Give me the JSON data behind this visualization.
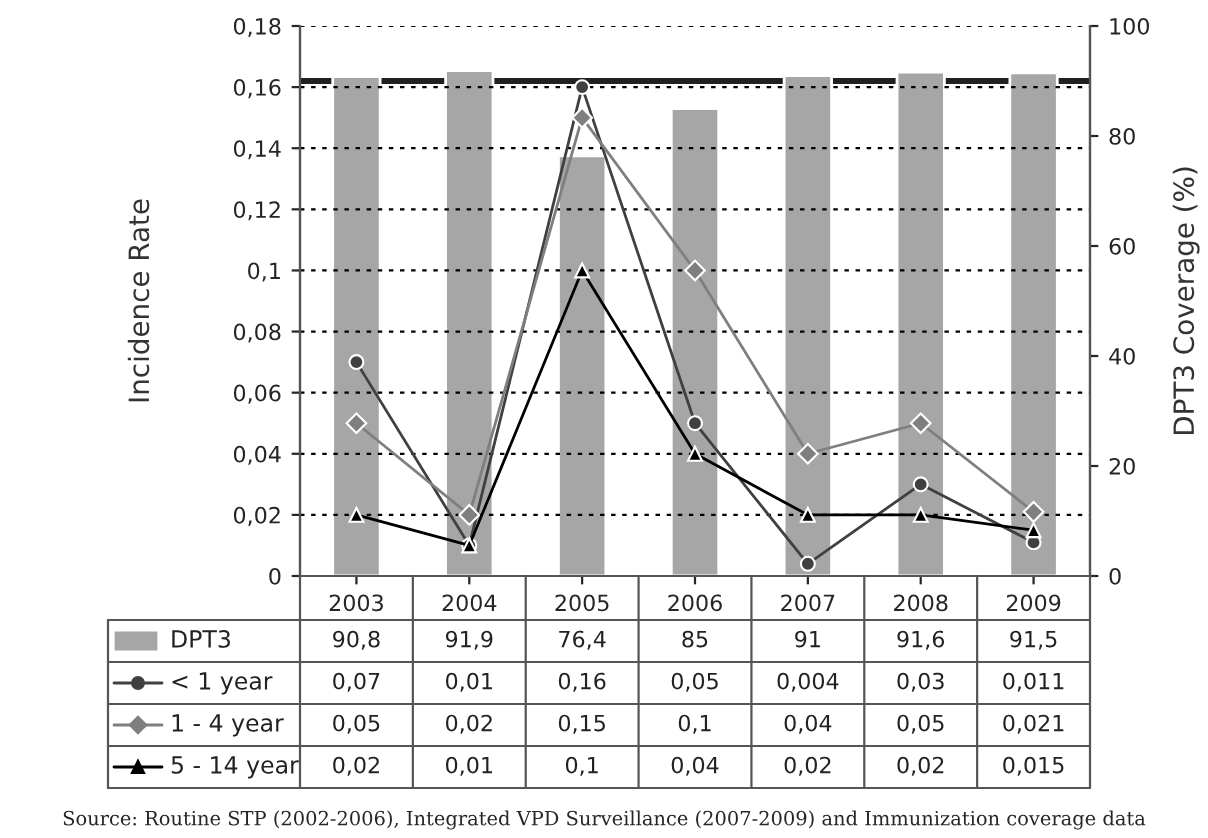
{
  "chart_data": {
    "type": "line",
    "categories": [
      "2003",
      "2004",
      "2005",
      "2006",
      "2007",
      "2008",
      "2009"
    ],
    "series": [
      {
        "name": "DPT3",
        "type": "bar",
        "axis": "y2",
        "color": "#a6a6a6",
        "values": [
          90.8,
          91.9,
          76.4,
          85,
          91,
          91.6,
          91.5
        ],
        "value_labels": [
          "90,8",
          "91,9",
          "76,4",
          "85",
          "91",
          "91,6",
          "91,5"
        ]
      },
      {
        "name": "< 1 year",
        "color": "#404040",
        "marker": "circle",
        "values": [
          0.07,
          0.01,
          0.16,
          0.05,
          0.004,
          0.03,
          0.011
        ],
        "value_labels": [
          "0,07",
          "0,01",
          "0,16",
          "0,05",
          "0,004",
          "0,03",
          "0,011"
        ]
      },
      {
        "name": "1 - 4 year",
        "color": "#7f7f7f",
        "marker": "diamond",
        "values": [
          0.05,
          0.02,
          0.15,
          0.1,
          0.04,
          0.05,
          0.021
        ],
        "value_labels": [
          "0,05",
          "0,02",
          "0,15",
          "0,1",
          "0,04",
          "0,05",
          "0,021"
        ]
      },
      {
        "name": "5 - 14 year",
        "color": "#000000",
        "marker": "triangle",
        "values": [
          0.02,
          0.01,
          0.1,
          0.04,
          0.02,
          0.02,
          0.015
        ],
        "value_labels": [
          "0,02",
          "0,01",
          "0,1",
          "0,04",
          "0,02",
          "0,02",
          "0,015"
        ]
      }
    ],
    "ylabel": "Incidence Rate",
    "y2label": "DPT3 Coverage (%)",
    "ylim": [
      0,
      0.18
    ],
    "yticks": [
      0,
      {
        "value": 0.02,
        "label": "0,02"
      },
      {
        "value": 0.04,
        "label": "0,04"
      },
      {
        "value": 0.06,
        "label": "0,06"
      },
      {
        "value": 0.08,
        "label": "0,08"
      },
      {
        "value": 0.1,
        "label": "0,1"
      },
      {
        "value": 0.12,
        "label": "0,12"
      },
      {
        "value": 0.14,
        "label": "0,14"
      },
      {
        "value": 0.16,
        "label": "0,16"
      },
      {
        "value": 0.18,
        "label": "0,18"
      }
    ],
    "y2lim": [
      0,
      100
    ],
    "y2ticks": [
      0,
      20,
      40,
      60,
      80,
      100
    ],
    "ref_lines": [
      {
        "axis": "y2",
        "value": 90,
        "color": "#202020"
      }
    ],
    "grid": "y",
    "legend": "bottom",
    "annotations": [
      "Source: Routine STP (2002-2006), Integrated VPD Surveillance (2007-2009) and Immunization coverage data"
    ]
  }
}
